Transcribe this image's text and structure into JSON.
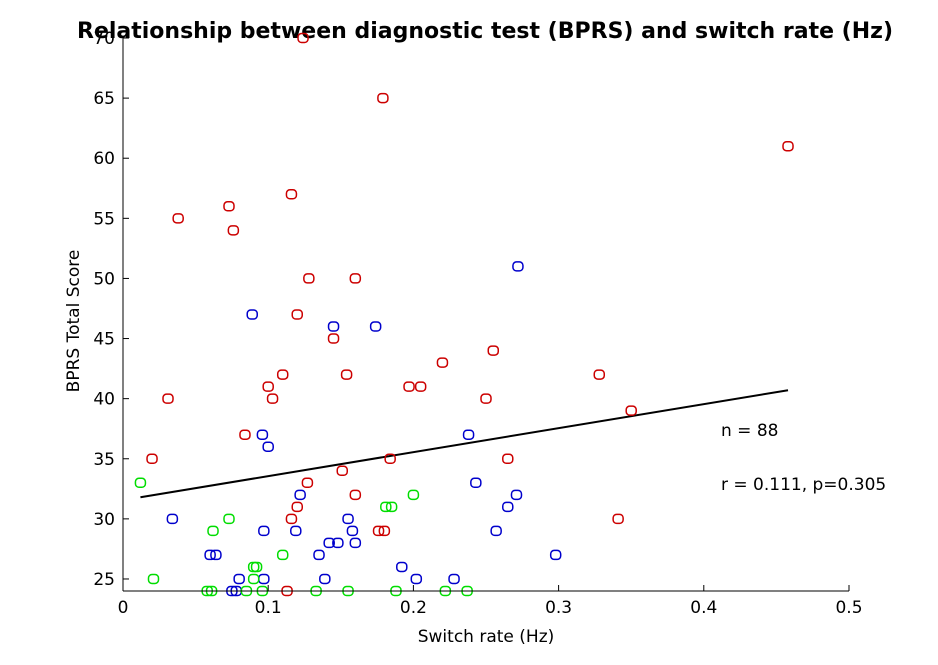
{
  "chart_data": {
    "type": "scatter",
    "title": "Relationship between diagnostic test (BPRS) and switch rate (Hz)",
    "xlabel": "Switch rate (Hz)",
    "ylabel": "BPRS Total Score",
    "xlim": [
      0,
      0.5
    ],
    "ylim": [
      24,
      70
    ],
    "xticks": [
      0,
      0.1,
      0.2,
      0.3,
      0.4,
      0.5
    ],
    "xtick_labels": [
      "0",
      "0.1",
      "0.2",
      "0.3",
      "0.4",
      "0.5"
    ],
    "yticks": [
      25,
      30,
      35,
      40,
      45,
      50,
      55,
      60,
      65,
      70
    ],
    "ytick_labels": [
      "25",
      "30",
      "35",
      "40",
      "45",
      "50",
      "55",
      "60",
      "65",
      "70"
    ],
    "grid": false,
    "annotations": [
      "n = 88",
      "r = 0.111, p=0.305"
    ],
    "fit_line": {
      "x": [
        0.012,
        0.458
      ],
      "y": [
        31.8,
        40.7
      ],
      "color": "#000000"
    },
    "series": [
      {
        "color": "#cc0000",
        "points": [
          [
            0.124,
            70
          ],
          [
            0.179,
            65
          ],
          [
            0.458,
            61
          ],
          [
            0.116,
            57
          ],
          [
            0.073,
            56
          ],
          [
            0.038,
            55
          ],
          [
            0.076,
            54
          ],
          [
            0.128,
            50
          ],
          [
            0.16,
            50
          ],
          [
            0.12,
            47
          ],
          [
            0.145,
            45
          ],
          [
            0.255,
            44
          ],
          [
            0.22,
            43
          ],
          [
            0.11,
            42
          ],
          [
            0.154,
            42
          ],
          [
            0.328,
            42
          ],
          [
            0.1,
            41
          ],
          [
            0.197,
            41
          ],
          [
            0.205,
            41
          ],
          [
            0.031,
            40
          ],
          [
            0.103,
            40
          ],
          [
            0.25,
            40
          ],
          [
            0.35,
            39
          ],
          [
            0.084,
            37
          ],
          [
            0.02,
            35
          ],
          [
            0.184,
            35
          ],
          [
            0.265,
            35
          ],
          [
            0.151,
            34
          ],
          [
            0.127,
            33
          ],
          [
            0.12,
            31
          ],
          [
            0.16,
            32
          ],
          [
            0.116,
            30
          ],
          [
            0.341,
            30
          ],
          [
            0.176,
            29
          ],
          [
            0.18,
            29
          ],
          [
            0.113,
            24
          ]
        ]
      },
      {
        "color": "#0000cc",
        "points": [
          [
            0.272,
            51
          ],
          [
            0.089,
            47
          ],
          [
            0.145,
            46
          ],
          [
            0.174,
            46
          ],
          [
            0.096,
            37
          ],
          [
            0.238,
            37
          ],
          [
            0.1,
            36
          ],
          [
            0.243,
            33
          ],
          [
            0.122,
            32
          ],
          [
            0.271,
            32
          ],
          [
            0.265,
            31
          ],
          [
            0.034,
            30
          ],
          [
            0.155,
            30
          ],
          [
            0.097,
            29
          ],
          [
            0.119,
            29
          ],
          [
            0.158,
            29
          ],
          [
            0.257,
            29
          ],
          [
            0.142,
            28
          ],
          [
            0.148,
            28
          ],
          [
            0.16,
            28
          ],
          [
            0.06,
            27
          ],
          [
            0.064,
            27
          ],
          [
            0.135,
            27
          ],
          [
            0.298,
            27
          ],
          [
            0.192,
            26
          ],
          [
            0.08,
            25
          ],
          [
            0.097,
            25
          ],
          [
            0.139,
            25
          ],
          [
            0.202,
            25
          ],
          [
            0.228,
            25
          ],
          [
            0.075,
            24
          ],
          [
            0.078,
            24
          ]
        ]
      },
      {
        "color": "#00dd00",
        "points": [
          [
            0.012,
            33
          ],
          [
            0.2,
            32
          ],
          [
            0.181,
            31
          ],
          [
            0.185,
            31
          ],
          [
            0.073,
            30
          ],
          [
            0.062,
            29
          ],
          [
            0.11,
            27
          ],
          [
            0.09,
            26
          ],
          [
            0.092,
            26
          ],
          [
            0.021,
            25
          ],
          [
            0.058,
            24
          ],
          [
            0.061,
            24
          ],
          [
            0.085,
            24
          ],
          [
            0.096,
            24
          ],
          [
            0.133,
            24
          ],
          [
            0.155,
            24
          ],
          [
            0.188,
            24
          ],
          [
            0.222,
            24
          ],
          [
            0.237,
            24
          ],
          [
            0.09,
            25
          ]
        ]
      }
    ]
  }
}
